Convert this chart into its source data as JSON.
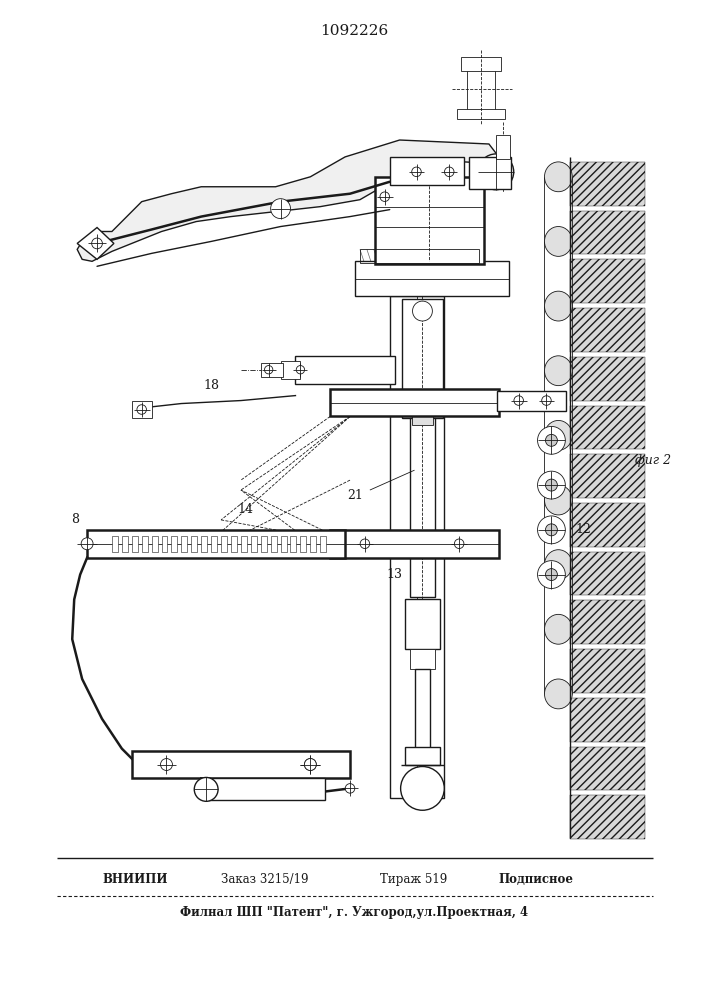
{
  "patent_number": "1092226",
  "background_color": "#ffffff",
  "line_color": "#000000",
  "fig_label": "фиг 2",
  "bottom_line1_left": "ВНИИПИ",
  "bottom_line1_mid1": "Заказ 3215/19",
  "bottom_line1_mid2": "Тираж 519",
  "bottom_line1_right": "Подписное",
  "bottom_line2": "Филнал ШП \"Патент\", г. Ужгород,ул.Проектная, 4",
  "lc": "#1a1a1a",
  "lw_main": 1.0,
  "lw_thin": 0.6,
  "lw_thick": 1.8
}
